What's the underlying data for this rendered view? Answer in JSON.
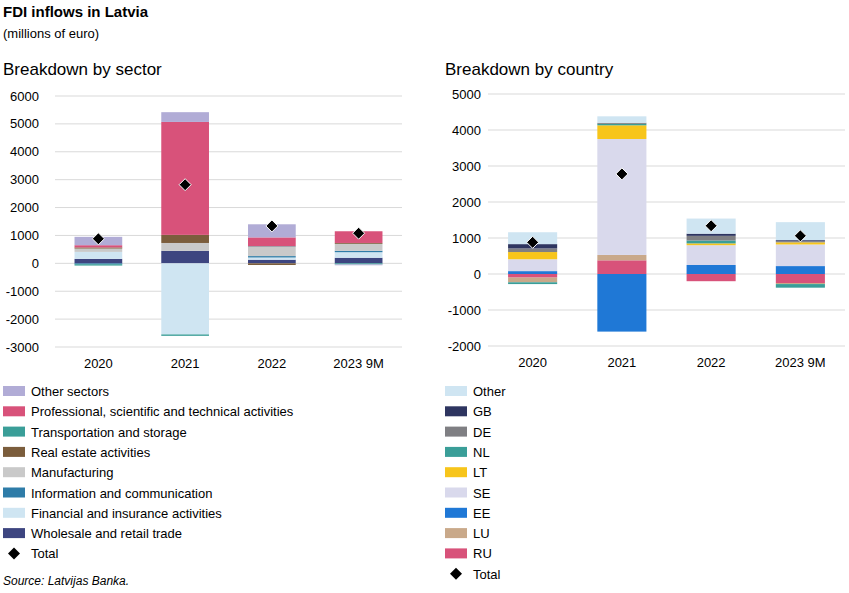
{
  "title": "FDI inflows in Latvia",
  "subtitle": "(millions of euro)",
  "source": "Source: Latvijas Banka.",
  "chart_data": [
    {
      "type": "bar",
      "stacked": true,
      "grid": true,
      "title": "Breakdown by sector",
      "categories": [
        "2020",
        "2021",
        "2022",
        "2023 9M"
      ],
      "ylim": [
        -3000,
        6000
      ],
      "yticks": [
        -3000,
        -2000,
        -1000,
        0,
        1000,
        2000,
        3000,
        4000,
        5000,
        6000
      ],
      "series": [
        {
          "name": "Other sectors",
          "color": "#b1acd6",
          "values": [
            300,
            350,
            470,
            -30
          ]
        },
        {
          "name": "Professional, scientific and technical activities",
          "color": "#d8527a",
          "values": [
            80,
            4050,
            320,
            420
          ]
        },
        {
          "name": "Transportation and storage",
          "color": "#3a9e98",
          "values": [
            -50,
            -50,
            20,
            -40
          ]
        },
        {
          "name": "Real estate activities",
          "color": "#7b5d3c",
          "values": [
            40,
            290,
            -60,
            30
          ]
        },
        {
          "name": "Manufacturing",
          "color": "#c9c9c9",
          "values": [
            120,
            280,
            330,
            250
          ]
        },
        {
          "name": "Information and communication",
          "color": "#2e7ca8",
          "values": [
            -30,
            0,
            50,
            50
          ]
        },
        {
          "name": "Financial and insurance activities",
          "color": "#cfe5f2",
          "values": [
            250,
            -2550,
            80,
            200
          ]
        },
        {
          "name": "Wholesale and retail trade",
          "color": "#3d4580",
          "values": [
            160,
            450,
            130,
            200
          ]
        },
        {
          "name": "Total",
          "type": "scatter",
          "marker": "diamond",
          "color": "#000000",
          "values": [
            880,
            2820,
            1340,
            1080
          ]
        }
      ]
    },
    {
      "type": "bar",
      "stacked": true,
      "grid": true,
      "title": "Breakdown by country",
      "categories": [
        "2020",
        "2021",
        "2022",
        "2023 9M"
      ],
      "ylim": [
        -2000,
        5000
      ],
      "yticks": [
        -2000,
        -1000,
        0,
        1000,
        2000,
        3000,
        4000,
        5000
      ],
      "series": [
        {
          "name": "Other",
          "color": "#cfe5f2",
          "values": [
            330,
            180,
            420,
            500
          ]
        },
        {
          "name": "GB",
          "color": "#2e3560",
          "values": [
            120,
            0,
            60,
            30
          ]
        },
        {
          "name": "DE",
          "color": "#7f7f83",
          "values": [
            100,
            30,
            130,
            30
          ]
        },
        {
          "name": "NL",
          "color": "#3a9e98",
          "values": [
            -50,
            40,
            80,
            -100
          ]
        },
        {
          "name": "LT",
          "color": "#f7c51b",
          "values": [
            200,
            380,
            50,
            60
          ]
        },
        {
          "name": "SE",
          "color": "#d9d9ec",
          "values": [
            330,
            3220,
            550,
            600
          ]
        },
        {
          "name": "EE",
          "color": "#1f78d6",
          "values": [
            80,
            -1600,
            250,
            220
          ]
        },
        {
          "name": "LU",
          "color": "#c9a98a",
          "values": [
            -130,
            150,
            0,
            -30
          ]
        },
        {
          "name": "RU",
          "color": "#d8527a",
          "values": [
            -100,
            380,
            -200,
            -250
          ]
        },
        {
          "name": "Total",
          "type": "scatter",
          "marker": "diamond",
          "color": "#000000",
          "values": [
            880,
            2780,
            1340,
            1060
          ]
        }
      ]
    }
  ]
}
